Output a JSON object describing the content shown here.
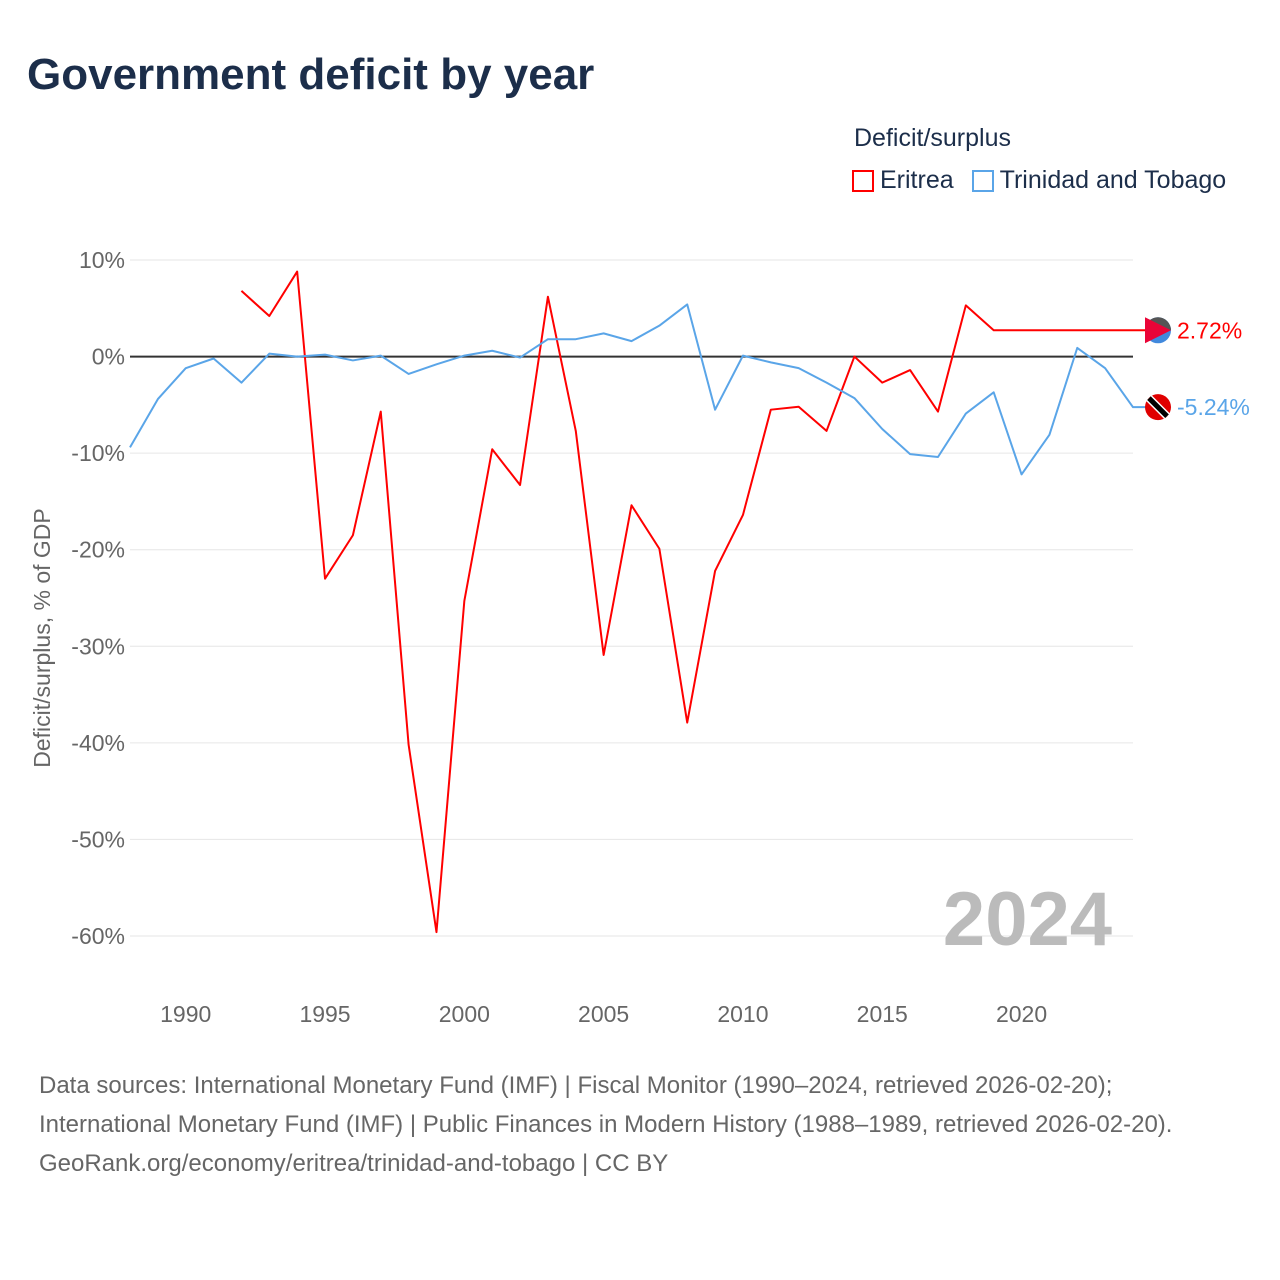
{
  "title": "Government deficit by year",
  "legend": {
    "title": "Deficit/surplus",
    "items": [
      "Eritrea",
      "Trinidad and Tobago"
    ]
  },
  "colors": {
    "Eritrea": "#ff0000",
    "Trinidad and Tobago": "#5aa5e8"
  },
  "chart_data": {
    "type": "line",
    "title": "Government deficit by year",
    "xlabel": "",
    "ylabel": "Deficit/surplus, % of GDP",
    "xlim": [
      1988,
      2024
    ],
    "ylim": [
      -60,
      10
    ],
    "x_ticks": [
      1990,
      1995,
      2000,
      2005,
      2010,
      2015,
      2020
    ],
    "y_ticks": [
      10,
      0,
      -10,
      -20,
      -30,
      -40,
      -50,
      -60
    ],
    "y_tick_labels": [
      "10%",
      "0%",
      "-10%",
      "-20%",
      "-30%",
      "-40%",
      "-50%",
      "-60%"
    ],
    "year_label": "2024",
    "series": [
      {
        "name": "Eritrea",
        "end_label": "2.72%",
        "x": [
          1992,
          1993,
          1994,
          1995,
          1996,
          1997,
          1998,
          1999,
          2000,
          2001,
          2002,
          2003,
          2004,
          2005,
          2006,
          2007,
          2008,
          2009,
          2010,
          2011,
          2012,
          2013,
          2014,
          2015,
          2016,
          2017,
          2018,
          2019
        ],
        "values": [
          6.8,
          4.2,
          8.8,
          -23.0,
          -18.5,
          -5.7,
          -40.2,
          -59.6,
          -25.3,
          -9.6,
          -13.3,
          6.2,
          -7.7,
          -30.9,
          -15.4,
          -19.9,
          -37.9,
          -22.2,
          -16.4,
          -5.5,
          -5.2,
          -7.7,
          0.0,
          -2.7,
          -1.4,
          -5.7,
          5.3,
          2.72
        ]
      },
      {
        "name": "Trinidad and Tobago",
        "end_label": "-5.24%",
        "x": [
          1988,
          1989,
          1990,
          1991,
          1992,
          1993,
          1994,
          1995,
          1996,
          1997,
          1998,
          1999,
          2000,
          2001,
          2002,
          2003,
          2004,
          2005,
          2006,
          2007,
          2008,
          2009,
          2010,
          2011,
          2012,
          2013,
          2014,
          2015,
          2016,
          2017,
          2018,
          2019,
          2020,
          2021,
          2022,
          2023,
          2024
        ],
        "values": [
          -9.4,
          -4.4,
          -1.2,
          -0.2,
          -2.7,
          0.3,
          0.0,
          0.2,
          -0.4,
          0.1,
          -1.8,
          -0.8,
          0.1,
          0.6,
          -0.1,
          1.8,
          1.8,
          2.4,
          1.6,
          3.2,
          5.4,
          -5.5,
          0.1,
          -0.6,
          -1.2,
          -2.7,
          -4.3,
          -7.5,
          -10.1,
          -10.4,
          -5.9,
          -3.7,
          -12.2,
          -8.1,
          0.9,
          -1.2,
          -5.24
        ]
      }
    ]
  },
  "footer": {
    "sources": "Data sources: International Monetary Fund (IMF) | Fiscal Monitor (1990–2024, retrieved 2026-02-20); International Monetary Fund (IMF) | Public Finances in Modern History (1988–1989, retrieved 2026-02-20).",
    "link": "GeoRank.org/economy/eritrea/trinidad-and-tobago | CC BY"
  }
}
